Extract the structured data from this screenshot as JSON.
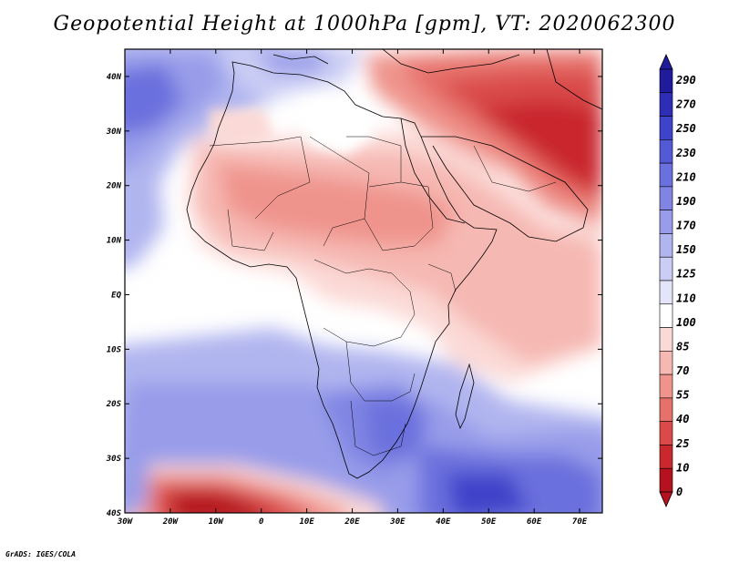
{
  "title": "Geopotential Height at 1000hPa [gpm], VT: 2020062300",
  "footer": "GrADS: IGES/COLA",
  "lat_ticks": [
    "40N",
    "30N",
    "20N",
    "10N",
    "EQ",
    "10S",
    "20S",
    "30S",
    "40S"
  ],
  "lon_ticks": [
    "30W",
    "20W",
    "10W",
    "0",
    "10E",
    "20E",
    "30E",
    "40E",
    "50E",
    "60E",
    "70E"
  ],
  "colorbar": {
    "labels": [
      "290",
      "270",
      "250",
      "230",
      "210",
      "190",
      "170",
      "150",
      "125",
      "110",
      "100",
      "85",
      "70",
      "55",
      "40",
      "25",
      "10",
      "0"
    ],
    "colors_top_to_bottom": [
      "#1f1b9a",
      "#2e2db5",
      "#3f43c9",
      "#5459d6",
      "#6a70dd",
      "#8085e3",
      "#989ce9",
      "#b1b5ef",
      "#cbcdf4",
      "#e4e5fa",
      "#ffffff",
      "#fbd9d6",
      "#f6b8b2",
      "#ef948d",
      "#e6706a",
      "#d94a48",
      "#c9282d",
      "#b5121f"
    ]
  },
  "map": {
    "lon_range": [
      -30,
      75
    ],
    "lat_range": [
      -40,
      45
    ]
  }
}
